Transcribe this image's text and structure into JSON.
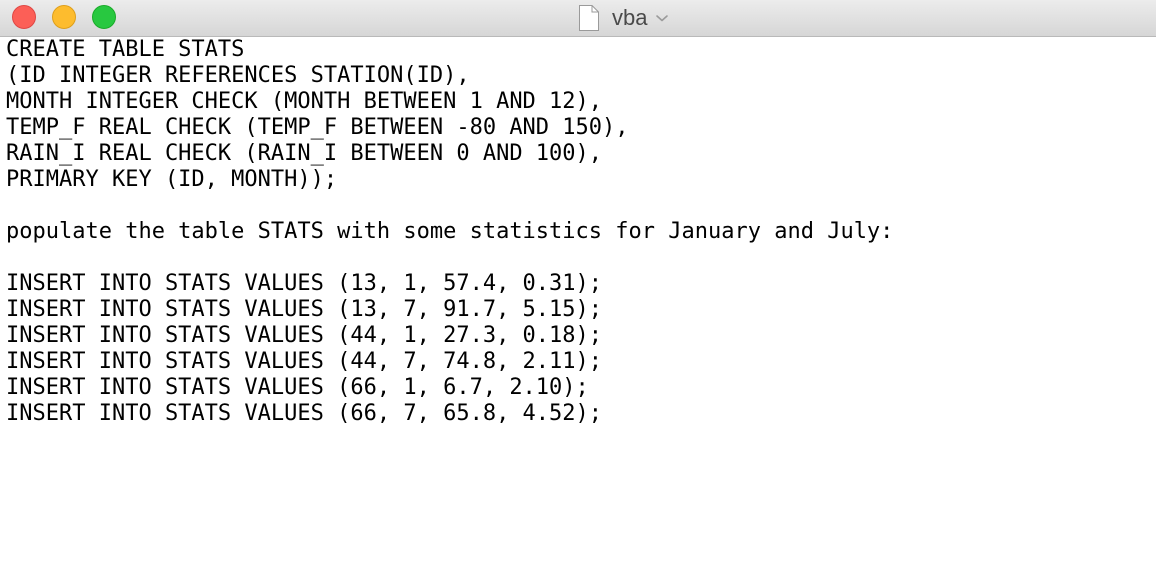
{
  "window": {
    "title": "vba",
    "icons": {
      "close": "close-button",
      "minimize": "minimize-button",
      "zoom": "zoom-button",
      "document": "document-icon",
      "title_menu": "chevron-down-icon"
    },
    "colors": {
      "close": "#fc5f57",
      "minimize": "#fdbc2e",
      "zoom": "#28c840",
      "text": "#000000",
      "background": "#ffffff"
    }
  },
  "editor": {
    "lines": [
      "CREATE TABLE STATS",
      "(ID INTEGER REFERENCES STATION(ID),",
      "MONTH INTEGER CHECK (MONTH BETWEEN 1 AND 12),",
      "TEMP_F REAL CHECK (TEMP_F BETWEEN -80 AND 150),",
      "RAIN_I REAL CHECK (RAIN_I BETWEEN 0 AND 100),",
      "PRIMARY KEY (ID, MONTH));",
      "",
      "populate the table STATS with some statistics for January and July:",
      "",
      "INSERT INTO STATS VALUES (13, 1, 57.4, 0.31);",
      "INSERT INTO STATS VALUES (13, 7, 91.7, 5.15);",
      "INSERT INTO STATS VALUES (44, 1, 27.3, 0.18);",
      "INSERT INTO STATS VALUES (44, 7, 74.8, 2.11);",
      "INSERT INTO STATS VALUES (66, 1, 6.7, 2.10);",
      "INSERT INTO STATS VALUES (66, 7, 65.8, 4.52);"
    ]
  }
}
